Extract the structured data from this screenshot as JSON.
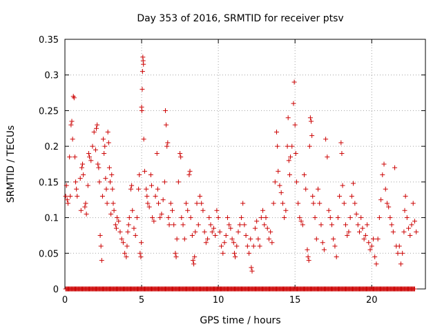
{
  "chart_data": {
    "type": "scatter",
    "title": "Day 353 of 2016, SRMTID for receiver ptsv",
    "xlabel": "GPS time / hours",
    "ylabel": "SRMTID / TECUs",
    "xlim": [
      0,
      23.5
    ],
    "ylim": [
      0,
      0.35
    ],
    "xticks": [
      0,
      5,
      10,
      15,
      20
    ],
    "yticks": [
      0,
      0.05,
      0.1,
      0.15,
      0.2,
      0.25,
      0.3,
      0.35
    ],
    "ytick_labels": [
      "0",
      "0.05",
      "0.1",
      "0.15",
      "0.2",
      "0.25",
      "0.3",
      "0.35"
    ],
    "grid": true,
    "marker": "+",
    "color": "#cc0000",
    "series": [
      {
        "name": "SRMTID",
        "points": [
          [
            0.05,
            0.13
          ],
          [
            0.1,
            0.145
          ],
          [
            0.15,
            0.125
          ],
          [
            0.2,
            0.12
          ],
          [
            0.3,
            0.185
          ],
          [
            0.35,
            0.13
          ],
          [
            0.4,
            0.23
          ],
          [
            0.45,
            0.235
          ],
          [
            0.5,
            0.21
          ],
          [
            0.55,
            0.27
          ],
          [
            0.6,
            0.268
          ],
          [
            0.65,
            0.185
          ],
          [
            0.7,
            0.15
          ],
          [
            0.75,
            0.14
          ],
          [
            0.8,
            0.13
          ],
          [
            1.0,
            0.155
          ],
          [
            1.05,
            0.11
          ],
          [
            1.1,
            0.17
          ],
          [
            1.15,
            0.175
          ],
          [
            1.2,
            0.16
          ],
          [
            1.3,
            0.115
          ],
          [
            1.35,
            0.12
          ],
          [
            1.4,
            0.105
          ],
          [
            1.5,
            0.145
          ],
          [
            1.55,
            0.19
          ],
          [
            1.6,
            0.185
          ],
          [
            1.7,
            0.18
          ],
          [
            1.8,
            0.2
          ],
          [
            1.9,
            0.22
          ],
          [
            2.0,
            0.195
          ],
          [
            2.05,
            0.225
          ],
          [
            2.1,
            0.23
          ],
          [
            2.15,
            0.175
          ],
          [
            2.2,
            0.17
          ],
          [
            2.25,
            0.15
          ],
          [
            2.3,
            0.075
          ],
          [
            2.35,
            0.06
          ],
          [
            2.4,
            0.04
          ],
          [
            2.45,
            0.13
          ],
          [
            2.5,
            0.21
          ],
          [
            2.55,
            0.19
          ],
          [
            2.6,
            0.2
          ],
          [
            2.65,
            0.155
          ],
          [
            2.7,
            0.14
          ],
          [
            2.75,
            0.12
          ],
          [
            2.8,
            0.22
          ],
          [
            2.85,
            0.205
          ],
          [
            2.9,
            0.17
          ],
          [
            2.95,
            0.15
          ],
          [
            3.0,
            0.105
          ],
          [
            3.05,
            0.16
          ],
          [
            3.1,
            0.14
          ],
          [
            3.15,
            0.12
          ],
          [
            3.2,
            0.11
          ],
          [
            3.3,
            0.09
          ],
          [
            3.35,
            0.085
          ],
          [
            3.4,
            0.1
          ],
          [
            3.5,
            0.095
          ],
          [
            3.6,
            0.08
          ],
          [
            3.7,
            0.07
          ],
          [
            3.8,
            0.065
          ],
          [
            3.9,
            0.05
          ],
          [
            4.0,
            0.045
          ],
          [
            4.05,
            0.06
          ],
          [
            4.1,
            0.08
          ],
          [
            4.15,
            0.09
          ],
          [
            4.2,
            0.1
          ],
          [
            4.3,
            0.14
          ],
          [
            4.35,
            0.145
          ],
          [
            4.4,
            0.11
          ],
          [
            4.5,
            0.085
          ],
          [
            4.6,
            0.075
          ],
          [
            4.7,
            0.1
          ],
          [
            4.8,
            0.14
          ],
          [
            4.85,
            0.16
          ],
          [
            4.9,
            0.05
          ],
          [
            4.95,
            0.045
          ],
          [
            4.98,
            0.065
          ],
          [
            5.0,
            0.255
          ],
          [
            5.02,
            0.25
          ],
          [
            5.04,
            0.28
          ],
          [
            5.06,
            0.305
          ],
          [
            5.08,
            0.325
          ],
          [
            5.1,
            0.32
          ],
          [
            5.12,
            0.315
          ],
          [
            5.14,
            0.21
          ],
          [
            5.2,
            0.165
          ],
          [
            5.3,
            0.14
          ],
          [
            5.35,
            0.13
          ],
          [
            5.4,
            0.12
          ],
          [
            5.5,
            0.115
          ],
          [
            5.6,
            0.16
          ],
          [
            5.65,
            0.145
          ],
          [
            5.7,
            0.1
          ],
          [
            5.8,
            0.095
          ],
          [
            5.9,
            0.13
          ],
          [
            6.0,
            0.19
          ],
          [
            6.05,
            0.14
          ],
          [
            6.1,
            0.12
          ],
          [
            6.2,
            0.1
          ],
          [
            6.3,
            0.105
          ],
          [
            6.4,
            0.125
          ],
          [
            6.5,
            0.15
          ],
          [
            6.55,
            0.25
          ],
          [
            6.6,
            0.23
          ],
          [
            6.65,
            0.2
          ],
          [
            6.7,
            0.205
          ],
          [
            6.75,
            0.1
          ],
          [
            6.8,
            0.09
          ],
          [
            6.9,
            0.12
          ],
          [
            7.0,
            0.11
          ],
          [
            7.1,
            0.09
          ],
          [
            7.2,
            0.05
          ],
          [
            7.25,
            0.045
          ],
          [
            7.3,
            0.07
          ],
          [
            7.4,
            0.15
          ],
          [
            7.5,
            0.19
          ],
          [
            7.55,
            0.185
          ],
          [
            7.6,
            0.1
          ],
          [
            7.7,
            0.09
          ],
          [
            7.8,
            0.07
          ],
          [
            7.9,
            0.12
          ],
          [
            8.0,
            0.11
          ],
          [
            8.1,
            0.16
          ],
          [
            8.15,
            0.165
          ],
          [
            8.2,
            0.1
          ],
          [
            8.3,
            0.075
          ],
          [
            8.35,
            0.04
          ],
          [
            8.4,
            0.035
          ],
          [
            8.45,
            0.045
          ],
          [
            8.5,
            0.08
          ],
          [
            8.6,
            0.12
          ],
          [
            8.7,
            0.09
          ],
          [
            8.8,
            0.13
          ],
          [
            8.9,
            0.12
          ],
          [
            9.0,
            0.11
          ],
          [
            9.1,
            0.08
          ],
          [
            9.2,
            0.065
          ],
          [
            9.3,
            0.07
          ],
          [
            9.4,
            0.1
          ],
          [
            9.5,
            0.09
          ],
          [
            9.6,
            0.08
          ],
          [
            9.7,
            0.085
          ],
          [
            9.8,
            0.075
          ],
          [
            9.9,
            0.11
          ],
          [
            10.0,
            0.1
          ],
          [
            10.1,
            0.08
          ],
          [
            10.2,
            0.06
          ],
          [
            10.3,
            0.05
          ],
          [
            10.4,
            0.065
          ],
          [
            10.5,
            0.075
          ],
          [
            10.6,
            0.1
          ],
          [
            10.7,
            0.09
          ],
          [
            10.8,
            0.085
          ],
          [
            10.9,
            0.07
          ],
          [
            11.0,
            0.065
          ],
          [
            11.05,
            0.05
          ],
          [
            11.1,
            0.045
          ],
          [
            11.2,
            0.06
          ],
          [
            11.3,
            0.08
          ],
          [
            11.4,
            0.09
          ],
          [
            11.5,
            0.1
          ],
          [
            11.6,
            0.12
          ],
          [
            11.7,
            0.09
          ],
          [
            11.8,
            0.075
          ],
          [
            11.9,
            0.06
          ],
          [
            12.0,
            0.05
          ],
          [
            12.1,
            0.07
          ],
          [
            12.15,
            0.03
          ],
          [
            12.2,
            0.025
          ],
          [
            12.3,
            0.06
          ],
          [
            12.4,
            0.085
          ],
          [
            12.5,
            0.095
          ],
          [
            12.6,
            0.07
          ],
          [
            12.7,
            0.06
          ],
          [
            12.8,
            0.1
          ],
          [
            12.9,
            0.11
          ],
          [
            13.0,
            0.09
          ],
          [
            13.1,
            0.1
          ],
          [
            13.2,
            0.085
          ],
          [
            13.3,
            0.07
          ],
          [
            13.4,
            0.08
          ],
          [
            13.5,
            0.065
          ],
          [
            13.6,
            0.12
          ],
          [
            13.7,
            0.15
          ],
          [
            13.8,
            0.22
          ],
          [
            13.85,
            0.2
          ],
          [
            13.9,
            0.165
          ],
          [
            14.0,
            0.145
          ],
          [
            14.1,
            0.135
          ],
          [
            14.2,
            0.12
          ],
          [
            14.3,
            0.1
          ],
          [
            14.4,
            0.11
          ],
          [
            14.5,
            0.2
          ],
          [
            14.55,
            0.24
          ],
          [
            14.6,
            0.18
          ],
          [
            14.65,
            0.16
          ],
          [
            14.7,
            0.185
          ],
          [
            14.8,
            0.2
          ],
          [
            14.9,
            0.26
          ],
          [
            14.95,
            0.29
          ],
          [
            15.0,
            0.23
          ],
          [
            15.05,
            0.19
          ],
          [
            15.1,
            0.15
          ],
          [
            15.2,
            0.12
          ],
          [
            15.3,
            0.1
          ],
          [
            15.4,
            0.095
          ],
          [
            15.5,
            0.09
          ],
          [
            15.6,
            0.16
          ],
          [
            15.7,
            0.14
          ],
          [
            15.8,
            0.055
          ],
          [
            15.85,
            0.045
          ],
          [
            15.9,
            0.04
          ],
          [
            15.95,
            0.2
          ],
          [
            16.0,
            0.24
          ],
          [
            16.05,
            0.235
          ],
          [
            16.1,
            0.215
          ],
          [
            16.15,
            0.13
          ],
          [
            16.2,
            0.12
          ],
          [
            16.3,
            0.1
          ],
          [
            16.4,
            0.07
          ],
          [
            16.5,
            0.14
          ],
          [
            16.6,
            0.12
          ],
          [
            16.7,
            0.09
          ],
          [
            16.8,
            0.065
          ],
          [
            16.9,
            0.055
          ],
          [
            17.0,
            0.21
          ],
          [
            17.1,
            0.185
          ],
          [
            17.2,
            0.11
          ],
          [
            17.3,
            0.1
          ],
          [
            17.4,
            0.09
          ],
          [
            17.5,
            0.07
          ],
          [
            17.6,
            0.06
          ],
          [
            17.7,
            0.045
          ],
          [
            17.8,
            0.1
          ],
          [
            17.9,
            0.13
          ],
          [
            18.0,
            0.205
          ],
          [
            18.05,
            0.19
          ],
          [
            18.1,
            0.145
          ],
          [
            18.2,
            0.12
          ],
          [
            18.3,
            0.09
          ],
          [
            18.4,
            0.075
          ],
          [
            18.5,
            0.08
          ],
          [
            18.6,
            0.1
          ],
          [
            18.7,
            0.13
          ],
          [
            18.8,
            0.148
          ],
          [
            18.9,
            0.12
          ],
          [
            19.0,
            0.105
          ],
          [
            19.1,
            0.09
          ],
          [
            19.2,
            0.08
          ],
          [
            19.3,
            0.1
          ],
          [
            19.4,
            0.085
          ],
          [
            19.5,
            0.07
          ],
          [
            19.6,
            0.075
          ],
          [
            19.7,
            0.09
          ],
          [
            19.8,
            0.065
          ],
          [
            19.9,
            0.055
          ],
          [
            20.0,
            0.06
          ],
          [
            20.1,
            0.07
          ],
          [
            20.2,
            0.045
          ],
          [
            20.3,
            0.035
          ],
          [
            20.4,
            0.07
          ],
          [
            20.5,
            0.1
          ],
          [
            20.6,
            0.125
          ],
          [
            20.7,
            0.16
          ],
          [
            20.8,
            0.175
          ],
          [
            20.9,
            0.14
          ],
          [
            21.0,
            0.12
          ],
          [
            21.1,
            0.115
          ],
          [
            21.2,
            0.1
          ],
          [
            21.3,
            0.09
          ],
          [
            21.4,
            0.08
          ],
          [
            21.5,
            0.17
          ],
          [
            21.6,
            0.06
          ],
          [
            21.7,
            0.05
          ],
          [
            21.8,
            0.06
          ],
          [
            21.9,
            0.035
          ],
          [
            22.0,
            0.05
          ],
          [
            22.1,
            0.08
          ],
          [
            22.15,
            0.11
          ],
          [
            22.2,
            0.13
          ],
          [
            22.3,
            0.1
          ],
          [
            22.4,
            0.085
          ],
          [
            22.5,
            0.075
          ],
          [
            22.6,
            0.09
          ],
          [
            22.7,
            0.12
          ],
          [
            22.8,
            0.095
          ],
          [
            22.9,
            0.08
          ]
        ]
      },
      {
        "name": "zero-baseline",
        "x_from": 0.05,
        "x_to": 22.8,
        "step": 0.05,
        "y": 0
      }
    ]
  }
}
